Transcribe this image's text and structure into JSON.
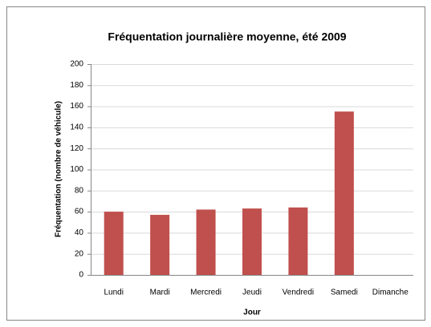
{
  "chart_data": {
    "type": "bar",
    "title": "Fréquentation journalière moyenne, été 2009",
    "x_label": "Jour",
    "y_label": "Fréquentation (nombre de véhicule)",
    "categories": [
      "Lundi",
      "Mardi",
      "Mercredi",
      "Jeudi",
      "Vendredi",
      "Samedi",
      "Dimanche"
    ],
    "values": [
      60,
      57,
      62,
      63,
      64,
      155,
      0
    ],
    "color": "#c0504d",
    "ylim": [
      0,
      200
    ],
    "yticks": [
      0,
      20,
      40,
      60,
      80,
      100,
      120,
      140,
      160,
      180,
      200
    ],
    "grid": true
  }
}
